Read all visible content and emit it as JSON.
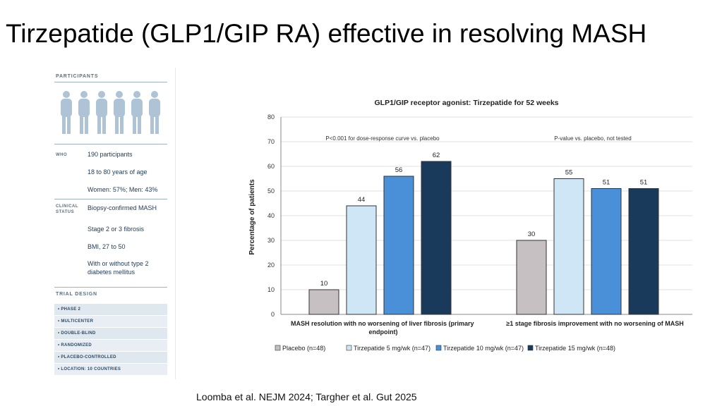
{
  "slide": {
    "title": "Tirzepatide (GLP1/GIP RA) effective in resolving MASH",
    "citation": "Loomba et al. NEJM 2024; Targher et al. Gut 2025"
  },
  "panel": {
    "participants_header": "PARTICIPANTS",
    "who_label": "WHO",
    "who_items": [
      "190 participants",
      "18 to 80 years of age",
      "Women: 57%; Men: 43%"
    ],
    "clinical_label": "CLINICAL STATUS",
    "clinical_items": [
      "Biopsy-confirmed MASH",
      "Stage 2 or 3 fibrosis",
      "BMI, 27 to 50",
      "With or without type 2 diabetes mellitus"
    ],
    "design_header": "TRIAL DESIGN",
    "design_items": [
      "• PHASE 2",
      "• MULTICENTER",
      "• DOUBLE-BLIND",
      "• RANDOMIZED",
      "• PLACEBO-CONTROLLED",
      "• LOCATION: 10 COUNTRIES"
    ]
  },
  "colors": {
    "placebo": "#c6c0c3",
    "tirz5": "#cfe6f7",
    "tirz10": "#4a90d9",
    "tirz15": "#1a3a5c",
    "people": "#aec3d6"
  },
  "chart_data": {
    "type": "bar",
    "title": "GLP1/GIP receptor agonist: Tirzepatide for 52 weeks",
    "ylabel": "Percentage of patients",
    "ylim": [
      0,
      80
    ],
    "yticks": [
      0,
      10,
      20,
      30,
      40,
      50,
      60,
      70,
      80
    ],
    "categories": [
      "MASH resolution with no worsening of liver fibrosis (primary endpoint)",
      "≥1 stage fibrosis improvement with no worsening of MASH"
    ],
    "annotations": [
      "P<0.001 for dose-response curve vs. placebo",
      "P-value vs. placebo, not tested"
    ],
    "legend_position": "bottom",
    "series": [
      {
        "name": "Placebo (n=48)",
        "values": [
          10,
          30
        ],
        "color": "#c6c0c3"
      },
      {
        "name": "Tirzepatide 5 mg/wk (n=47)",
        "values": [
          44,
          55
        ],
        "color": "#cfe6f7"
      },
      {
        "name": "Tirzepatide 10 mg/wk (n=47)",
        "values": [
          56,
          51
        ],
        "color": "#4a90d9"
      },
      {
        "name": "Tirzepatide 15 mg/wk (n=48)",
        "values": [
          62,
          51
        ],
        "color": "#1a3a5c"
      }
    ]
  }
}
